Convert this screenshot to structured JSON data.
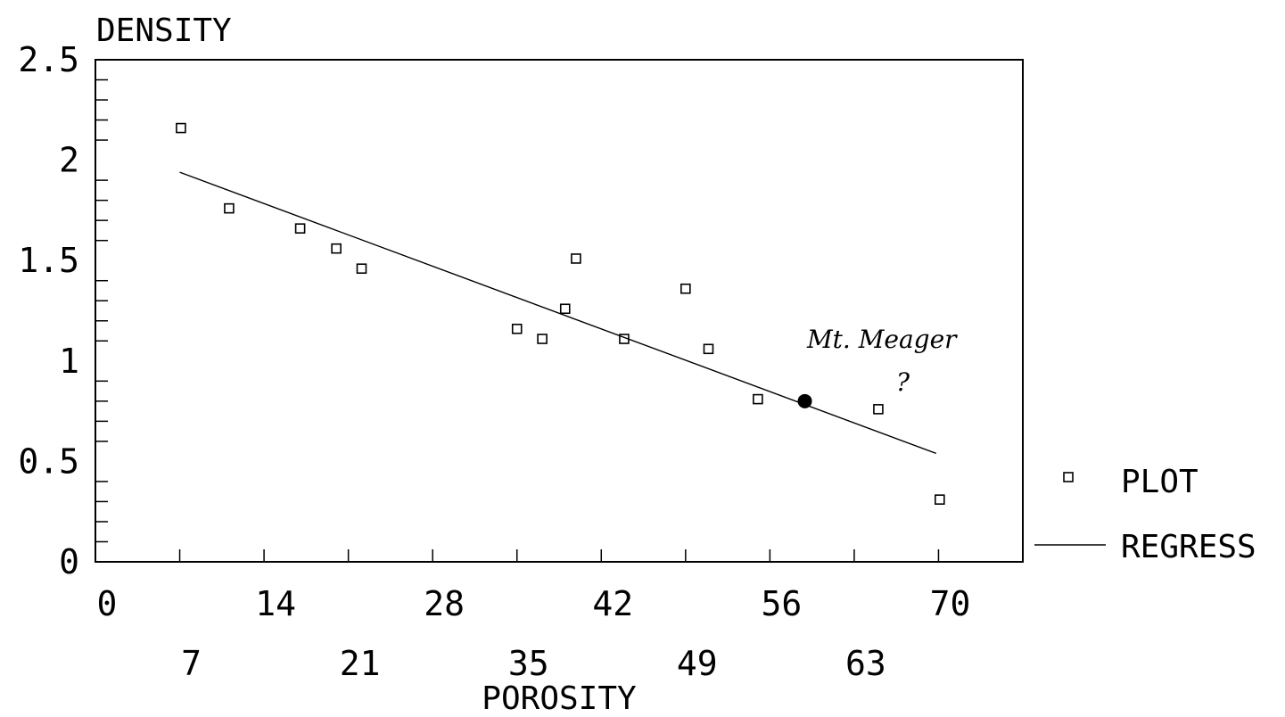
{
  "chart_data": {
    "type": "scatter",
    "xlabel": "POROSITY",
    "ylabel": "DENSITY",
    "xlim": [
      0,
      77
    ],
    "ylim": [
      0,
      2.5
    ],
    "x_ticks_upper": [
      "0",
      "14",
      "28",
      "42",
      "56",
      "70"
    ],
    "x_ticks_lower": [
      "7",
      "21",
      "35",
      "49",
      "63"
    ],
    "y_ticks": [
      "0",
      "0.5",
      "1",
      "1.5",
      "2",
      "2.5"
    ],
    "y_tick_values": [
      0,
      0.5,
      1,
      1.5,
      2,
      2.5
    ],
    "x_tick_values_upper": [
      0,
      14,
      28,
      42,
      56,
      70
    ],
    "x_tick_values_lower": [
      7,
      21,
      35,
      49,
      63
    ],
    "x_minor_tick_values": [
      0,
      7,
      14,
      21,
      28,
      35,
      42,
      49,
      56,
      63,
      70
    ],
    "y_minor_tick_values": [
      0.1,
      0.2,
      0.3,
      0.4,
      0.6,
      0.7,
      0.8,
      0.9,
      1.1,
      1.2,
      1.3,
      1.4,
      1.6,
      1.7,
      1.8,
      1.9,
      2.1,
      2.2,
      2.3,
      2.4
    ],
    "series": [
      {
        "name": "PLOT",
        "kind": "points",
        "marker": "open-square",
        "points": [
          {
            "x": 7.1,
            "y": 2.16
          },
          {
            "x": 11.1,
            "y": 1.76
          },
          {
            "x": 17.0,
            "y": 1.66
          },
          {
            "x": 20.0,
            "y": 1.56
          },
          {
            "x": 22.1,
            "y": 1.46
          },
          {
            "x": 35.0,
            "y": 1.16
          },
          {
            "x": 37.1,
            "y": 1.11
          },
          {
            "x": 39.0,
            "y": 1.26
          },
          {
            "x": 39.9,
            "y": 1.51
          },
          {
            "x": 43.9,
            "y": 1.11
          },
          {
            "x": 49.0,
            "y": 1.36
          },
          {
            "x": 50.9,
            "y": 1.06
          },
          {
            "x": 55.0,
            "y": 0.81
          },
          {
            "x": 65.0,
            "y": 0.76
          },
          {
            "x": 70.1,
            "y": 0.31
          }
        ]
      },
      {
        "name": "REGRESS",
        "kind": "line",
        "points": [
          {
            "x": 7.0,
            "y": 1.94
          },
          {
            "x": 69.8,
            "y": 0.54
          }
        ]
      }
    ],
    "highlight_point": {
      "x": 58.9,
      "y": 0.8
    },
    "legend": {
      "placement": "right",
      "entries": [
        {
          "label": "PLOT",
          "symbol": "open-square"
        },
        {
          "label": "REGRESS",
          "symbol": "line"
        }
      ]
    },
    "annotation": {
      "text": "Mt. Meager",
      "subtext": "?"
    },
    "grid": false
  }
}
